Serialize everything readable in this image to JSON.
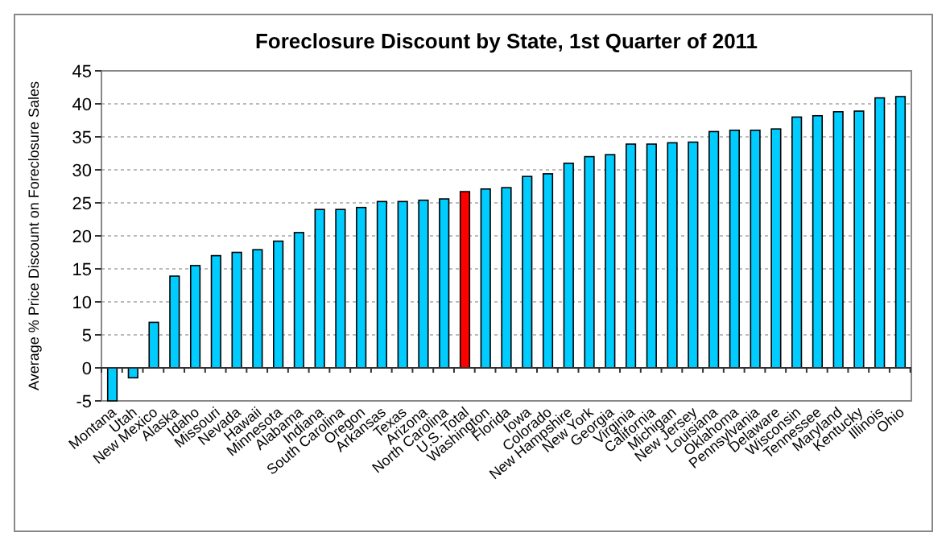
{
  "chart_data": {
    "type": "bar",
    "title": "Foreclosure Discount by State, 1st Quarter of 2011",
    "ylabel": "Average % Price Discount on Foreclosure Sales",
    "categories": [
      "Montana",
      "Utah",
      "New Mexico",
      "Alaska",
      "Idaho",
      "Missouri",
      "Nevada",
      "Hawaii",
      "Minnesota",
      "Alabama",
      "Indiana",
      "South Carolina",
      "Oregon",
      "Arkansas",
      "Texas",
      "Arizona",
      "North Carolina",
      "U.S. Total",
      "Washington",
      "Florida",
      "Iowa",
      "Colorado",
      "New Hampshire",
      "New York",
      "Georgia",
      "Virginia",
      "California",
      "Michigan",
      "New Jersey",
      "Louisiana",
      "Oklahoma",
      "Pennsylvania",
      "Delaware",
      "Wisconsin",
      "Tennessee",
      "Maryland",
      "Kentucky",
      "Illinois",
      "Ohio"
    ],
    "values": [
      -5,
      -1.5,
      6.9,
      13.9,
      15.5,
      17,
      17.5,
      17.9,
      19.2,
      20.5,
      24,
      24,
      24.3,
      25.2,
      25.2,
      25.4,
      25.6,
      26.7,
      27.1,
      27.3,
      29,
      29.4,
      31,
      32,
      32.3,
      33.9,
      33.9,
      34.1,
      34.2,
      35.8,
      36,
      36,
      36.2,
      38,
      38.2,
      38.8,
      38.9,
      40.9,
      41.1
    ],
    "colors": [
      "#00ccff",
      "#00ccff",
      "#00ccff",
      "#00ccff",
      "#00ccff",
      "#00ccff",
      "#00ccff",
      "#00ccff",
      "#00ccff",
      "#00ccff",
      "#00ccff",
      "#00ccff",
      "#00ccff",
      "#00ccff",
      "#00ccff",
      "#00ccff",
      "#00ccff",
      "#ff0000",
      "#00ccff",
      "#00ccff",
      "#00ccff",
      "#00ccff",
      "#00ccff",
      "#00ccff",
      "#00ccff",
      "#00ccff",
      "#00ccff",
      "#00ccff",
      "#00ccff",
      "#00ccff",
      "#00ccff",
      "#00ccff",
      "#00ccff",
      "#00ccff",
      "#00ccff",
      "#00ccff",
      "#00ccff",
      "#00ccff",
      "#00ccff"
    ],
    "ylim": [
      -5,
      45
    ],
    "yticks": [
      -5,
      0,
      5,
      10,
      15,
      20,
      25,
      30,
      35,
      40,
      45
    ],
    "grid": "y"
  }
}
